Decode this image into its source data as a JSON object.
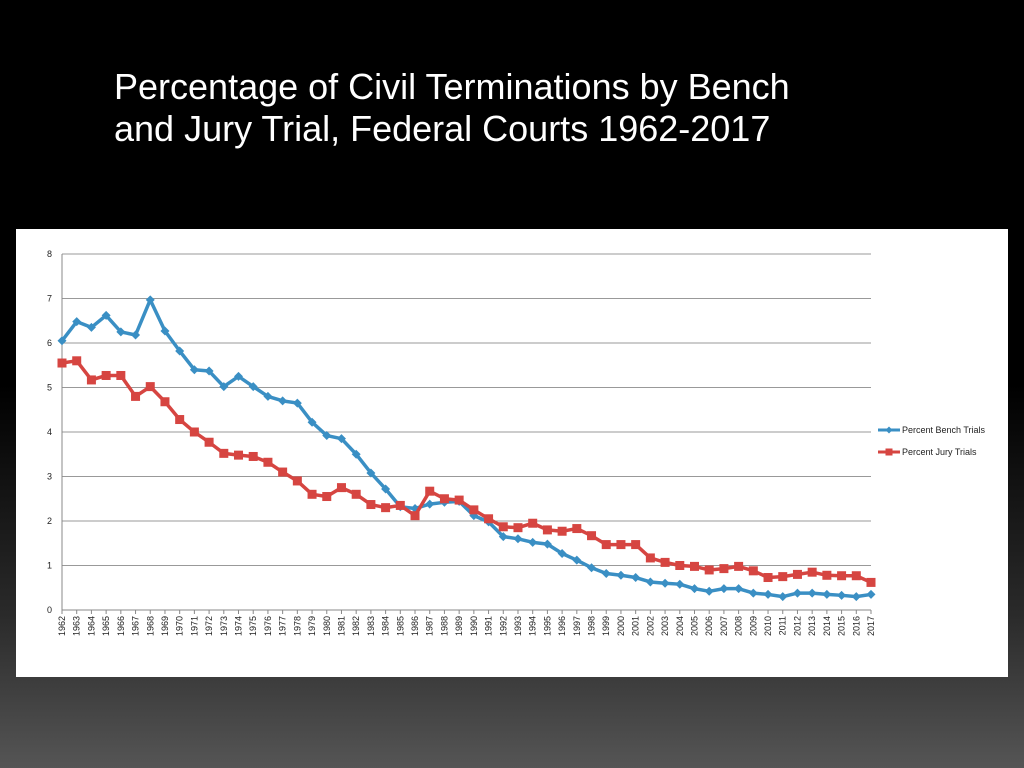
{
  "slide": {
    "title_line1": "Percentage of Civil Terminations by Bench",
    "title_line2": "and Jury Trial, Federal Courts 1962-2017"
  },
  "colors": {
    "bench": "#3a8fc4",
    "jury": "#d64541",
    "grid": "#999999",
    "background": "#000000",
    "card": "#ffffff"
  },
  "chart_data": {
    "type": "line",
    "x": [
      "1962",
      "1963",
      "1964",
      "1965",
      "1966",
      "1967",
      "1968",
      "1969",
      "1970",
      "1971",
      "1972",
      "1973",
      "1974",
      "1975",
      "1976",
      "1977",
      "1978",
      "1979",
      "1980",
      "1981",
      "1982",
      "1983",
      "1984",
      "1985",
      "1986",
      "1987",
      "1988",
      "1989",
      "1990",
      "1991",
      "1992",
      "1993",
      "1994",
      "1995",
      "1996",
      "1997",
      "1998",
      "1999",
      "2000",
      "2001",
      "2002",
      "2003",
      "2004",
      "2005",
      "2006",
      "2007",
      "2008",
      "2009",
      "2010",
      "2011",
      "2012",
      "2013",
      "2014",
      "2015",
      "2016",
      "2017"
    ],
    "series": [
      {
        "name": "Percent Bench Trials",
        "color": "#3a8fc4",
        "marker": "diamond",
        "values": [
          6.05,
          6.48,
          6.35,
          6.62,
          6.25,
          6.18,
          6.97,
          6.27,
          5.82,
          5.4,
          5.37,
          5.02,
          5.25,
          5.02,
          4.8,
          4.7,
          4.65,
          4.22,
          3.92,
          3.85,
          3.5,
          3.08,
          2.72,
          2.32,
          2.28,
          2.38,
          2.42,
          2.44,
          2.12,
          1.98,
          1.65,
          1.6,
          1.52,
          1.48,
          1.27,
          1.12,
          0.95,
          0.82,
          0.78,
          0.73,
          0.63,
          0.6,
          0.58,
          0.48,
          0.42,
          0.48,
          0.48,
          0.38,
          0.35,
          0.3,
          0.38,
          0.38,
          0.35,
          0.33,
          0.3,
          0.35
        ]
      },
      {
        "name": "Percent Jury Trials",
        "color": "#d64541",
        "marker": "square",
        "values": [
          5.55,
          5.6,
          5.17,
          5.27,
          5.27,
          4.8,
          5.02,
          4.68,
          4.28,
          4.0,
          3.77,
          3.52,
          3.48,
          3.45,
          3.32,
          3.1,
          2.9,
          2.6,
          2.55,
          2.75,
          2.6,
          2.37,
          2.3,
          2.35,
          2.12,
          2.67,
          2.5,
          2.47,
          2.25,
          2.05,
          1.87,
          1.85,
          1.95,
          1.8,
          1.77,
          1.83,
          1.67,
          1.47,
          1.47,
          1.47,
          1.17,
          1.07,
          1.0,
          0.98,
          0.9,
          0.93,
          0.98,
          0.88,
          0.73,
          0.75,
          0.8,
          0.85,
          0.78,
          0.77,
          0.77,
          0.62
        ]
      }
    ],
    "xlabel": "",
    "ylabel": "",
    "ylim": [
      0,
      8
    ],
    "yticks": [
      "0",
      "1",
      "2",
      "3",
      "4",
      "5",
      "6",
      "7",
      "8"
    ],
    "grid": true,
    "legend_position": "right"
  }
}
